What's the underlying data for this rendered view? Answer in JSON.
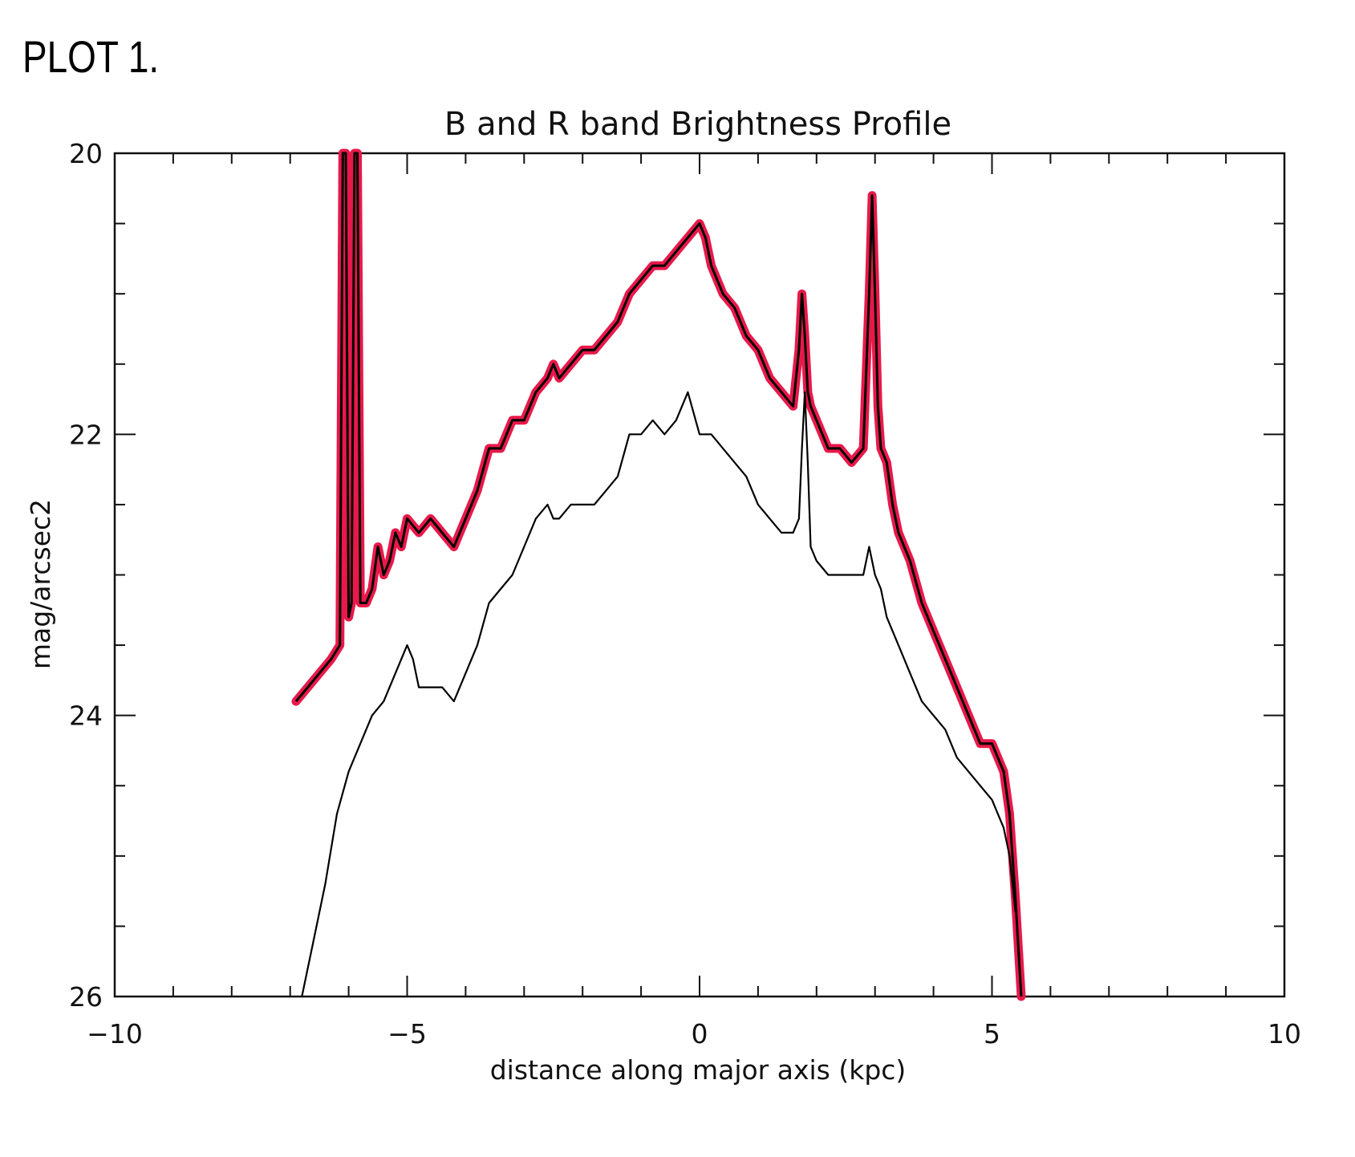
{
  "header": {
    "label": "PLOT 1."
  },
  "colors": {
    "background": "#ffffff",
    "ink": "#111111",
    "r_band": "#e8194a",
    "b_band": "#000000"
  },
  "chart_data": {
    "type": "line",
    "title": "B and R band Brightness Profile",
    "xlabel": "distance along major axis (kpc)",
    "ylabel": "mag/arcsec2",
    "xlim": [
      -10,
      10
    ],
    "ylim": [
      26,
      20
    ],
    "y_inverted": true,
    "grid": false,
    "x_ticks": [
      -10,
      -5,
      0,
      5,
      10
    ],
    "x_tick_labels": [
      "−10",
      "−5",
      "0",
      "5",
      "10"
    ],
    "y_ticks": [
      20,
      22,
      24,
      26
    ],
    "y_tick_labels": [
      "20",
      "22",
      "24",
      "26"
    ],
    "series": [
      {
        "color": "#e8194a",
        "x": [
          -6.9,
          -6.7,
          -6.5,
          -6.3,
          -6.15,
          -6.1,
          -6.05,
          -6.0,
          -5.95,
          -5.9,
          -5.85,
          -5.8,
          -5.75,
          -5.7,
          -5.6,
          -5.5,
          -5.4,
          -5.3,
          -5.2,
          -5.1,
          -5.0,
          -4.8,
          -4.6,
          -4.4,
          -4.2,
          -4.0,
          -3.8,
          -3.6,
          -3.4,
          -3.2,
          -3.0,
          -2.8,
          -2.6,
          -2.5,
          -2.4,
          -2.2,
          -2.0,
          -1.8,
          -1.6,
          -1.4,
          -1.2,
          -1.0,
          -0.8,
          -0.6,
          -0.4,
          -0.2,
          0.0,
          0.1,
          0.2,
          0.4,
          0.6,
          0.8,
          1.0,
          1.2,
          1.4,
          1.6,
          1.7,
          1.75,
          1.8,
          1.85,
          1.9,
          2.0,
          2.1,
          2.2,
          2.4,
          2.6,
          2.8,
          2.9,
          2.95,
          3.0,
          3.05,
          3.1,
          3.2,
          3.3,
          3.4,
          3.6,
          3.8,
          4.0,
          4.2,
          4.4,
          4.6,
          4.8,
          5.0,
          5.2,
          5.3,
          5.4,
          5.5
        ],
        "y": [
          23.9,
          23.8,
          23.7,
          23.6,
          23.5,
          20.0,
          20.0,
          23.3,
          23.2,
          20.0,
          20.0,
          23.2,
          23.2,
          23.2,
          23.1,
          22.8,
          23.0,
          22.9,
          22.7,
          22.8,
          22.6,
          22.7,
          22.6,
          22.7,
          22.8,
          22.6,
          22.4,
          22.1,
          22.1,
          21.9,
          21.9,
          21.7,
          21.6,
          21.5,
          21.6,
          21.5,
          21.4,
          21.4,
          21.3,
          21.2,
          21.0,
          20.9,
          20.8,
          20.8,
          20.7,
          20.6,
          20.5,
          20.6,
          20.8,
          21.0,
          21.1,
          21.3,
          21.4,
          21.6,
          21.7,
          21.8,
          21.4,
          21.0,
          21.3,
          21.7,
          21.8,
          21.9,
          22.0,
          22.1,
          22.1,
          22.2,
          22.1,
          21.0,
          20.3,
          21.0,
          21.8,
          22.1,
          22.2,
          22.5,
          22.7,
          22.9,
          23.2,
          23.4,
          23.6,
          23.8,
          24.0,
          24.2,
          24.2,
          24.4,
          24.7,
          25.3,
          26.0
        ]
      },
      {
        "color": "#000000",
        "x": [
          -6.8,
          -6.6,
          -6.4,
          -6.2,
          -6.0,
          -5.8,
          -5.6,
          -5.4,
          -5.2,
          -5.0,
          -4.9,
          -4.8,
          -4.6,
          -4.4,
          -4.2,
          -4.0,
          -3.8,
          -3.6,
          -3.4,
          -3.2,
          -3.0,
          -2.8,
          -2.6,
          -2.5,
          -2.4,
          -2.2,
          -2.0,
          -1.8,
          -1.6,
          -1.4,
          -1.2,
          -1.0,
          -0.8,
          -0.6,
          -0.4,
          -0.2,
          0.0,
          0.2,
          0.4,
          0.6,
          0.8,
          1.0,
          1.2,
          1.4,
          1.6,
          1.7,
          1.75,
          1.8,
          1.85,
          1.9,
          2.0,
          2.2,
          2.4,
          2.6,
          2.8,
          2.9,
          3.0,
          3.1,
          3.2,
          3.4,
          3.6,
          3.8,
          4.0,
          4.2,
          4.4,
          4.6,
          4.8,
          5.0,
          5.2,
          5.3,
          5.4
        ],
        "y": [
          26.0,
          25.6,
          25.2,
          24.7,
          24.4,
          24.2,
          24.0,
          23.9,
          23.7,
          23.5,
          23.6,
          23.8,
          23.8,
          23.8,
          23.9,
          23.7,
          23.5,
          23.2,
          23.1,
          23.0,
          22.8,
          22.6,
          22.5,
          22.6,
          22.6,
          22.5,
          22.5,
          22.5,
          22.4,
          22.3,
          22.0,
          22.0,
          21.9,
          22.0,
          21.9,
          21.7,
          22.0,
          22.0,
          22.1,
          22.2,
          22.3,
          22.5,
          22.6,
          22.7,
          22.7,
          22.6,
          22.1,
          21.7,
          22.2,
          22.8,
          22.9,
          23.0,
          23.0,
          23.0,
          23.0,
          22.8,
          23.0,
          23.1,
          23.3,
          23.5,
          23.7,
          23.9,
          24.0,
          24.1,
          24.3,
          24.4,
          24.5,
          24.6,
          24.8,
          25.0,
          25.4
        ]
      }
    ]
  }
}
